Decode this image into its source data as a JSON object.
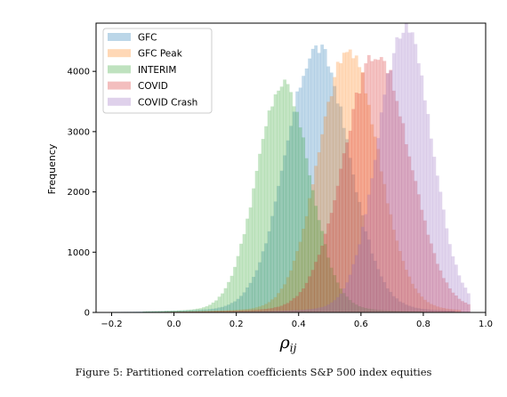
{
  "chart_data": {
    "type": "histogram",
    "xlabel_main": "ρ",
    "xlabel_sub": "ij",
    "ylabel": "Frequency",
    "xlim": [
      -0.25,
      1.0
    ],
    "ylim": [
      0,
      4800
    ],
    "xticks": [
      "−0.2",
      "0.0",
      "0.2",
      "0.4",
      "0.6",
      "0.8",
      "1.0"
    ],
    "xtick_values": [
      -0.2,
      0.0,
      0.2,
      0.4,
      0.6,
      0.8,
      1.0
    ],
    "yticks": [
      "0",
      "1000",
      "2000",
      "3000",
      "4000"
    ],
    "ytick_values": [
      0,
      1000,
      2000,
      3000,
      4000
    ],
    "grid": false,
    "legend_position": "top-left",
    "bin_width": 0.01,
    "series": [
      {
        "name": "GFC",
        "color": "#1f77b4",
        "mean": 0.46,
        "sd": 0.1,
        "peak": 4300,
        "range": [
          -0.2,
          0.9
        ]
      },
      {
        "name": "GFC Peak",
        "color": "#ff7f0e",
        "mean": 0.56,
        "sd": 0.095,
        "peak": 4250,
        "range": [
          -0.2,
          0.92
        ]
      },
      {
        "name": "INTERIM",
        "color": "#2ca02c",
        "mean": 0.35,
        "sd": 0.085,
        "peak": 3700,
        "range": [
          -0.1,
          0.8
        ]
      },
      {
        "name": "COVID",
        "color": "#d62728",
        "mean": 0.65,
        "sd": 0.105,
        "peak": 4200,
        "range": [
          -0.15,
          0.95
        ]
      },
      {
        "name": "COVID Crash",
        "color": "#9467bd",
        "mean": 0.74,
        "sd": 0.085,
        "peak": 4650,
        "range": [
          -0.1,
          0.95
        ]
      }
    ]
  },
  "caption": "Figure 5: Partitioned correlation coefficients S&P 500 index equities"
}
